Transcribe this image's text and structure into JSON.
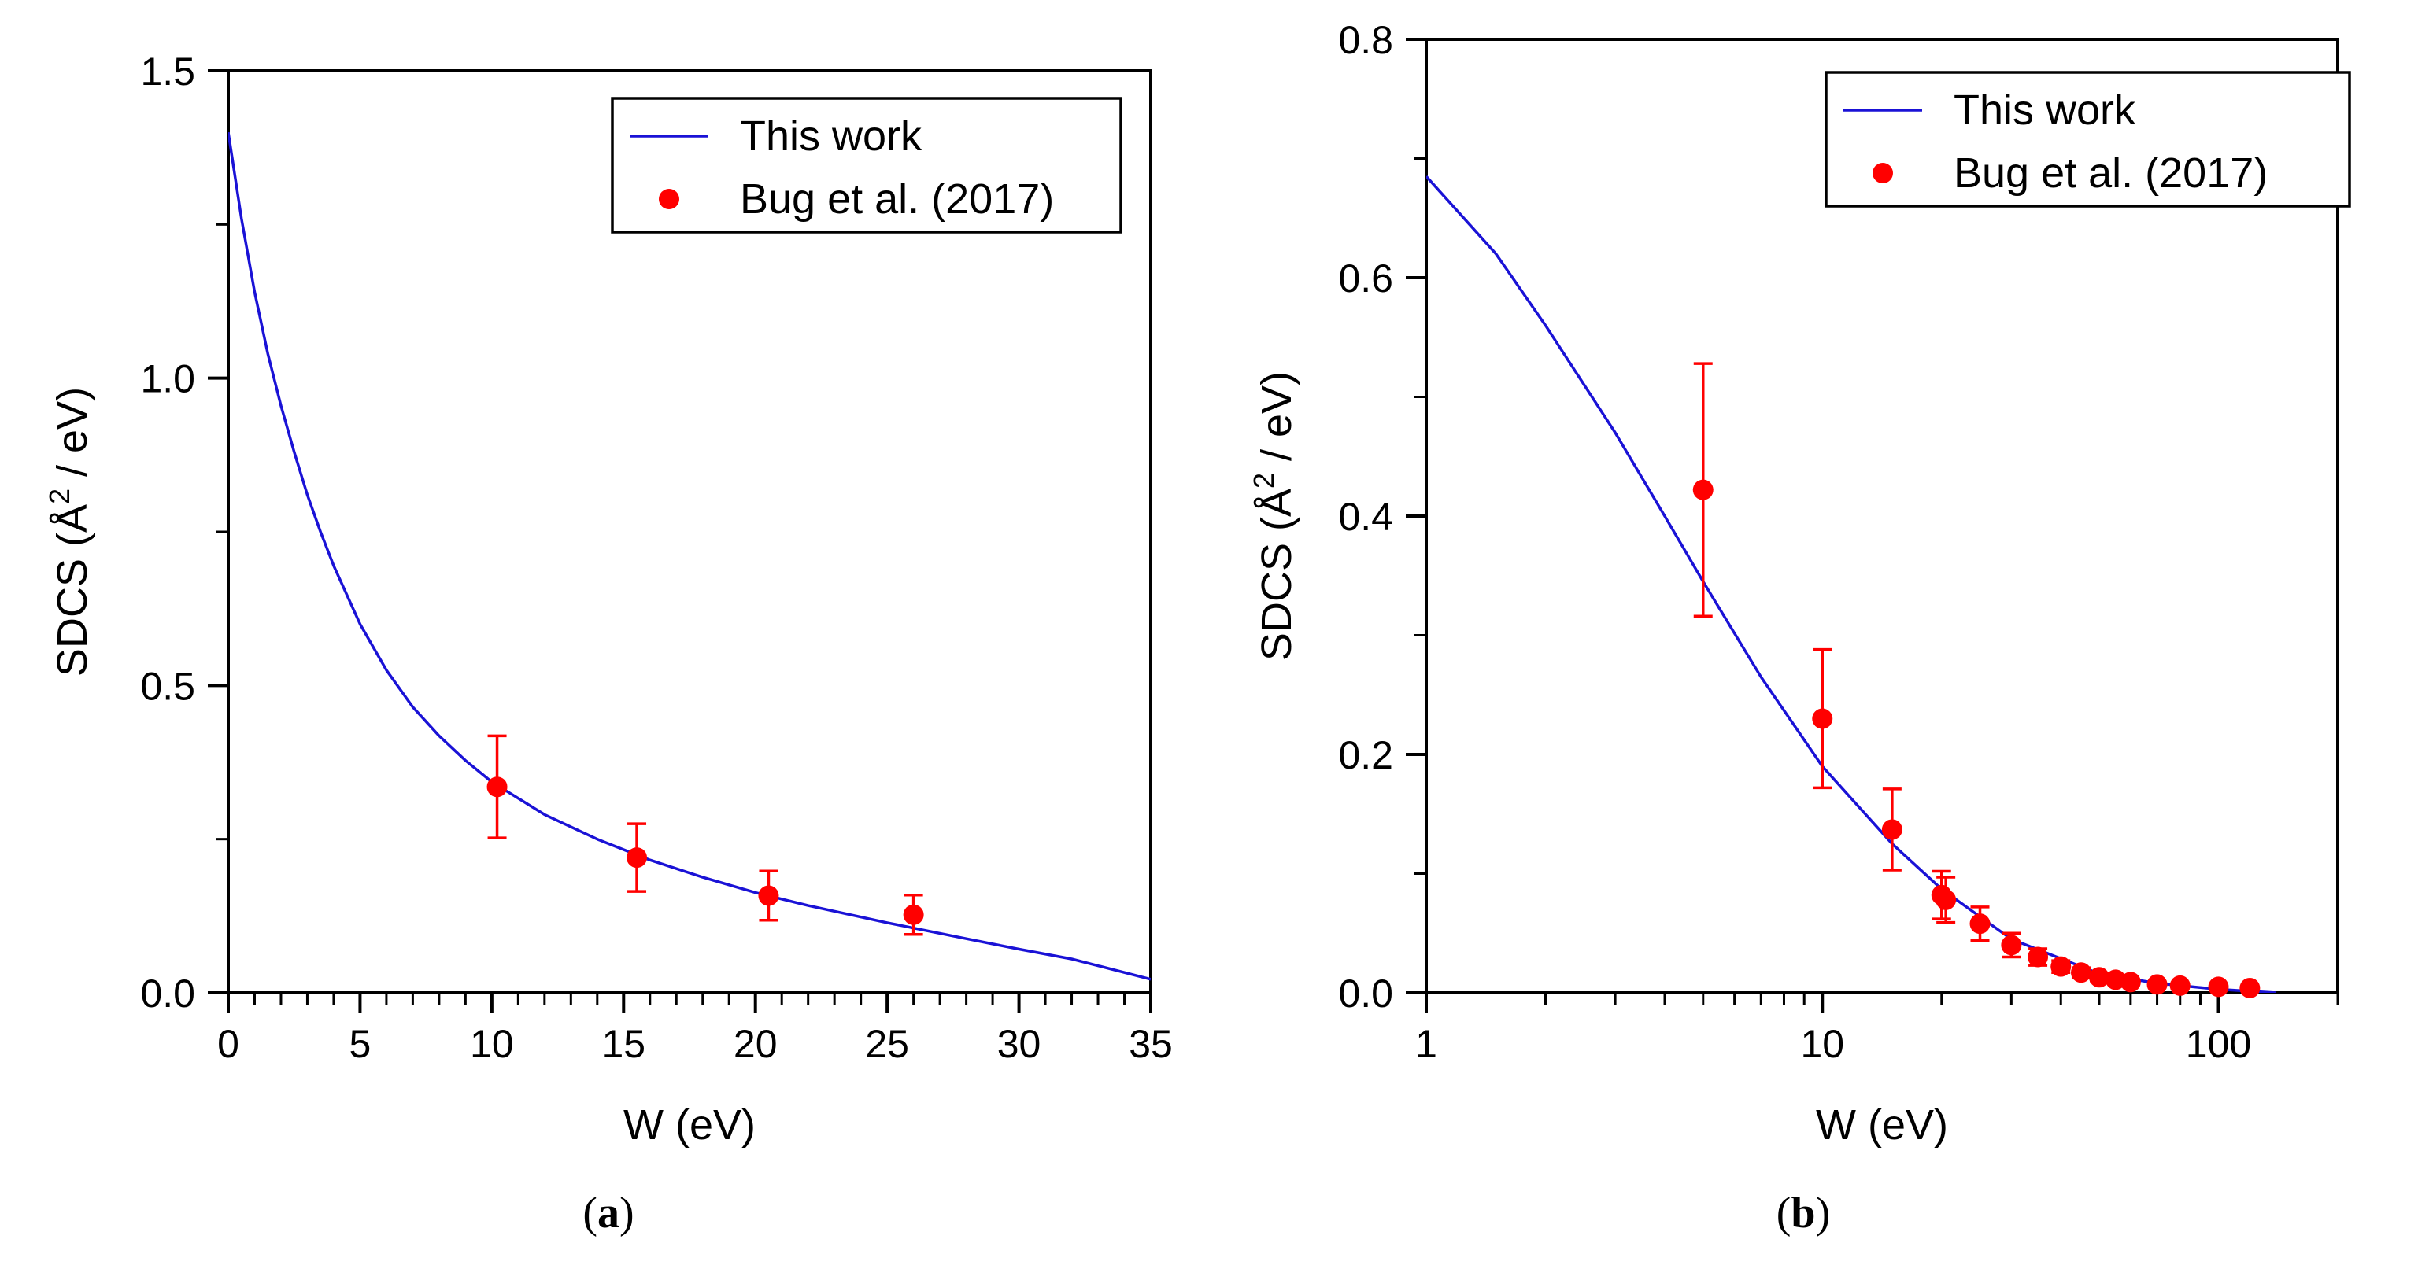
{
  "chart_data": [
    {
      "type": "line",
      "panel": "a",
      "caption_label": "a",
      "xlabel": "W (eV)",
      "ylabel_main": "SDCS (Å",
      "ylabel_sup": "2",
      "ylabel_tail": " / eV)",
      "xscale": "linear",
      "xlim": [
        0,
        35
      ],
      "ylim": [
        0,
        1.5
      ],
      "xticks": [
        0,
        5,
        10,
        15,
        20,
        25,
        30,
        35
      ],
      "xtick_labels": [
        "0",
        "5",
        "10",
        "15",
        "20",
        "25",
        "30",
        "35"
      ],
      "yticks": [
        0,
        0.5,
        1.0,
        1.5
      ],
      "ytick_labels": [
        "0.0",
        "0.5",
        "1.0",
        "1.5"
      ],
      "legend_position": "top-right",
      "series": [
        {
          "name": "This work",
          "kind": "line",
          "color": "#1a12d6",
          "x": [
            0,
            0.5,
            1,
            1.5,
            2,
            2.5,
            3,
            3.5,
            4,
            5,
            6,
            7,
            8,
            9,
            10,
            12,
            14,
            16,
            18,
            20,
            22,
            25,
            28,
            30,
            32,
            35
          ],
          "y": [
            1.4,
            1.26,
            1.14,
            1.04,
            0.955,
            0.88,
            0.81,
            0.75,
            0.695,
            0.6,
            0.525,
            0.465,
            0.418,
            0.378,
            0.343,
            0.29,
            0.25,
            0.216,
            0.188,
            0.163,
            0.142,
            0.114,
            0.088,
            0.071,
            0.055,
            0.022
          ]
        },
        {
          "name": "Bug et al. (2017)",
          "kind": "scatter",
          "color": "#ff0000",
          "x": [
            10.2,
            15.5,
            20.5,
            26.0
          ],
          "y": [
            0.335,
            0.22,
            0.158,
            0.127
          ],
          "yerr": [
            0.083,
            0.055,
            0.04,
            0.032
          ]
        }
      ]
    },
    {
      "type": "line",
      "panel": "b",
      "caption_label": "b",
      "xlabel": "W (eV)",
      "ylabel_main": "SDCS (Å",
      "ylabel_sup": "2",
      "ylabel_tail": " / eV)",
      "xscale": "log",
      "xlim": [
        1,
        200
      ],
      "ylim": [
        0,
        0.8
      ],
      "xticks": [
        1,
        10,
        100
      ],
      "xtick_labels": [
        "1",
        "10",
        "100"
      ],
      "xminor": [
        2,
        3,
        4,
        5,
        6,
        7,
        8,
        9,
        20,
        30,
        40,
        50,
        60,
        70,
        80,
        90,
        200
      ],
      "yticks": [
        0,
        0.2,
        0.4,
        0.6,
        0.8
      ],
      "ytick_labels": [
        "0.0",
        "0.2",
        "0.4",
        "0.6",
        "0.8"
      ],
      "legend_position": "top-right",
      "series": [
        {
          "name": "This work",
          "kind": "line",
          "color": "#1a12d6",
          "x": [
            1,
            1.5,
            2,
            3,
            4,
            5,
            7,
            10,
            15,
            20,
            30,
            50,
            70,
            100,
            140
          ],
          "y": [
            0.685,
            0.62,
            0.56,
            0.47,
            0.4,
            0.345,
            0.265,
            0.19,
            0.125,
            0.087,
            0.045,
            0.016,
            0.008,
            0.003,
            0.0
          ]
        },
        {
          "name": "Bug et al. (2017)",
          "kind": "scatter",
          "color": "#ff0000",
          "x": [
            5,
            10,
            15,
            20,
            20.5,
            25,
            30,
            35,
            40,
            45,
            50,
            55,
            60,
            70,
            80,
            100,
            120
          ],
          "y": [
            0.422,
            0.23,
            0.137,
            0.082,
            0.078,
            0.058,
            0.04,
            0.03,
            0.022,
            0.017,
            0.013,
            0.011,
            0.009,
            0.007,
            0.006,
            0.005,
            0.004
          ],
          "yerr": [
            0.106,
            0.058,
            0.034,
            0.02,
            0.019,
            0.014,
            0.01,
            0.007,
            0.005,
            0.004,
            0.003,
            0.003,
            0.002,
            0.002,
            0.001,
            0.001,
            0.001
          ]
        }
      ]
    }
  ]
}
